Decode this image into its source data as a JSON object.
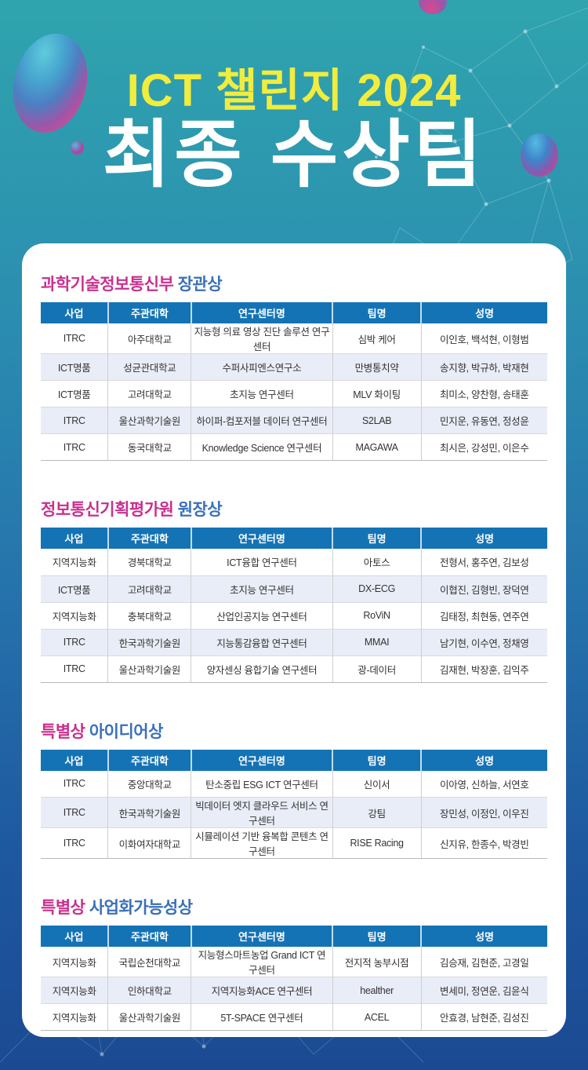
{
  "title": {
    "line1": "ICT 챌린지 2024",
    "line2": "최종 수상팀"
  },
  "columns": [
    "사업",
    "주관대학",
    "연구센터명",
    "팀명",
    "성명"
  ],
  "sections": [
    {
      "title_primary": "과학기술정보통신부",
      "title_secondary": "장관상",
      "rows": [
        [
          "ITRC",
          "아주대학교",
          "지능형 의료 영상 진단 솔루션 연구센터",
          "심박 케어",
          "이인호, 백석현, 이형범"
        ],
        [
          "ICT명품",
          "성균관대학교",
          "수퍼사피엔스연구소",
          "만병통치약",
          "송지향, 박규하, 박재현"
        ],
        [
          "ICT명품",
          "고려대학교",
          "초지능 연구센터",
          "MLV 화이팅",
          "최미소, 양찬형, 송태훈"
        ],
        [
          "ITRC",
          "울산과학기술원",
          "하이퍼-컴포저블 데이터 연구센터",
          "S2LAB",
          "민지운, 유동연, 정성윤"
        ],
        [
          "ITRC",
          "동국대학교",
          "Knowledge Science 연구센터",
          "MAGAWA",
          "최시은, 강성민, 이은수"
        ]
      ]
    },
    {
      "title_primary": "정보통신기획평가원",
      "title_secondary": "원장상",
      "rows": [
        [
          "지역지능화",
          "경북대학교",
          "ICT융합 연구센터",
          "아토스",
          "전형서, 홍주연, 김보성"
        ],
        [
          "ICT명품",
          "고려대학교",
          "초지능 연구센터",
          "DX-ECG",
          "이협진, 김형빈, 장덕연"
        ],
        [
          "지역지능화",
          "충북대학교",
          "산업인공지능 연구센터",
          "RoViN",
          "김태정, 최현동, 연주연"
        ],
        [
          "ITRC",
          "한국과학기술원",
          "지능통감융합 연구센터",
          "MMAI",
          "남기현, 이수연, 정채영"
        ],
        [
          "ITRC",
          "울산과학기술원",
          "양자센싱 융합기술 연구센터",
          "광-데이터",
          "김재현, 박장훈, 김익주"
        ]
      ]
    },
    {
      "title_primary": "특별상",
      "title_secondary": "아이디어상",
      "rows": [
        [
          "ITRC",
          "중앙대학교",
          "탄소중립 ESG ICT 연구센터",
          "신이서",
          "이아영, 신하늘, 서연호"
        ],
        [
          "ITRC",
          "한국과학기술원",
          "빅데이터 엣지 클라우드 서비스 연구센터",
          "강팀",
          "장민성, 이정인, 이우진"
        ],
        [
          "ITRC",
          "이화여자대학교",
          "시뮬레이션 기반 융복합 콘텐츠 연구센터",
          "RISE Racing",
          "신지유, 한종수, 박경빈"
        ]
      ]
    },
    {
      "title_primary": "특별상",
      "title_secondary": "사업화가능성상",
      "rows": [
        [
          "지역지능화",
          "국립순천대학교",
          "지능형스마트농업 Grand ICT 연구센터",
          "전지적 농부시점",
          "김승재, 김현준, 고경일"
        ],
        [
          "지역지능화",
          "인하대학교",
          "지역지능화ACE 연구센터",
          "healther",
          "변세미, 정연운, 김윤식"
        ],
        [
          "지역지능화",
          "울산과학기술원",
          "5T-SPACE 연구센터",
          "ACEL",
          "안효경, 남현준, 김성진"
        ]
      ]
    }
  ],
  "colors": {
    "title_yellow": "#F2EC3E",
    "title_white": "#FFFFFF",
    "section_primary": "#C9308F",
    "section_secondary": "#3A70B9",
    "table_header_bg": "#1473B5",
    "row_stripe": "#E9EDF7",
    "background_top": "#2FA4AE",
    "background_bottom": "#1B4A92"
  }
}
